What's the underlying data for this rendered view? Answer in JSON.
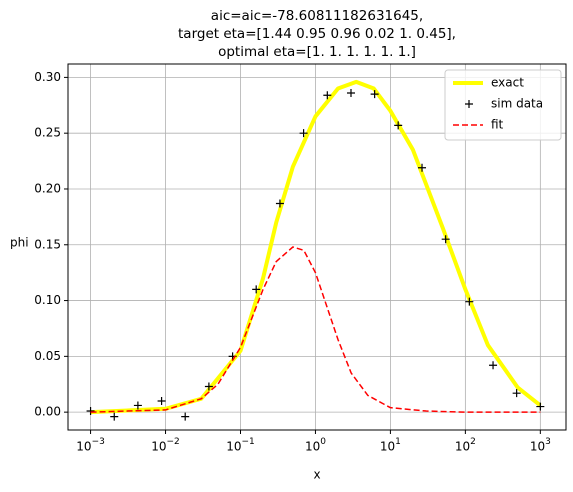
{
  "chart_data": {
    "type": "line",
    "title": [
      "aic=aic=-78.60811182631645,",
      "target eta=[1.44 0.95 0.96 0.02 1.   0.45],",
      "optimal eta=[1. 1. 1. 1. 1. 1.]"
    ],
    "xlabel": "x",
    "ylabel": "phi",
    "xscale": "log",
    "grid": true,
    "legend": "upper right",
    "xlim": [
      0.0005,
      2200
    ],
    "ylim": [
      -0.016,
      0.312
    ],
    "xticks": [
      {
        "value": 0.001,
        "label": "10^-3"
      },
      {
        "value": 0.01,
        "label": "10^-2"
      },
      {
        "value": 0.1,
        "label": "10^-1"
      },
      {
        "value": 1,
        "label": "10^0"
      },
      {
        "value": 10,
        "label": "10^1"
      },
      {
        "value": 100,
        "label": "10^2"
      },
      {
        "value": 1000,
        "label": "10^3"
      }
    ],
    "yticks": [
      {
        "value": 0,
        "label": "0.00"
      },
      {
        "value": 0.05,
        "label": "0.05"
      },
      {
        "value": 0.1,
        "label": "0.10"
      },
      {
        "value": 0.15,
        "label": "0.15"
      },
      {
        "value": 0.2,
        "label": "0.20"
      },
      {
        "value": 0.25,
        "label": "0.25"
      },
      {
        "value": 0.3,
        "label": "0.30"
      }
    ],
    "series": [
      {
        "name": "exact",
        "color": "#ffff00",
        "style": "line",
        "x": [
          0.001,
          0.01,
          0.03,
          0.1,
          0.2,
          0.3,
          0.5,
          1,
          2,
          3.5,
          6,
          10,
          20,
          50,
          100,
          200,
          500,
          1000
        ],
        "values": [
          0,
          0.003,
          0.012,
          0.055,
          0.12,
          0.17,
          0.22,
          0.265,
          0.29,
          0.296,
          0.29,
          0.27,
          0.235,
          0.165,
          0.11,
          0.06,
          0.022,
          0.006
        ]
      },
      {
        "name": "sim data",
        "color": "#000000",
        "style": "marker",
        "x": [
          0.001,
          0.00207,
          0.00428,
          0.00886,
          0.0183,
          0.0379,
          0.0785,
          0.162,
          0.336,
          0.695,
          1.44,
          2.98,
          6.16,
          12.7,
          26.4,
          54.6,
          113,
          234,
          483,
          1000
        ],
        "values": [
          0.001,
          -0.004,
          0.006,
          0.01,
          -0.004,
          0.023,
          0.05,
          0.11,
          0.187,
          0.25,
          0.284,
          0.286,
          0.285,
          0.257,
          0.219,
          0.155,
          0.099,
          0.042,
          0.017,
          0.005
        ]
      },
      {
        "name": "fit",
        "color": "#ff0000",
        "style": "dashed",
        "x": [
          0.001,
          0.01,
          0.03,
          0.05,
          0.1,
          0.2,
          0.3,
          0.5,
          0.7,
          1,
          2,
          3,
          5,
          10,
          30,
          100,
          1000
        ],
        "values": [
          0,
          0.002,
          0.012,
          0.025,
          0.058,
          0.11,
          0.135,
          0.148,
          0.145,
          0.125,
          0.065,
          0.035,
          0.015,
          0.004,
          0.001,
          0,
          0
        ]
      }
    ]
  }
}
